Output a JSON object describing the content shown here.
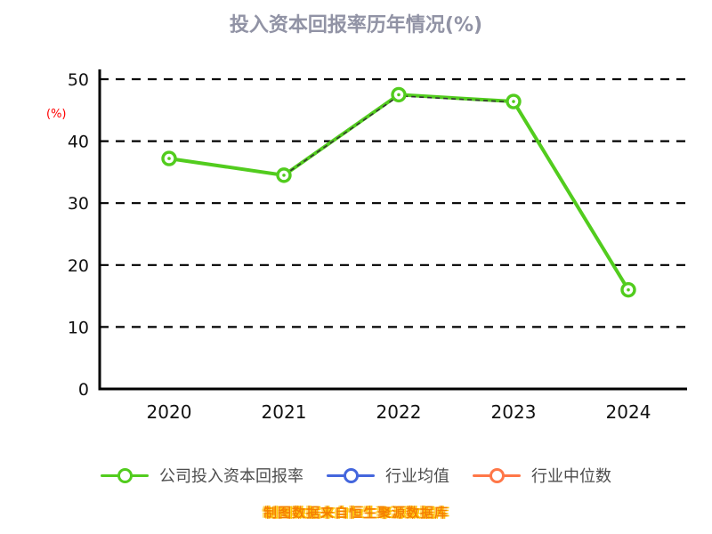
{
  "chart_data": {
    "type": "line",
    "title": "投入资本回报率历年情况(%)",
    "ylabel": "(%)",
    "ylabel_color": "#ff0000",
    "title_color": "#9193a5",
    "categories": [
      "2020",
      "2021",
      "2022",
      "2023",
      "2024"
    ],
    "series": [
      {
        "name": "公司投入资本回报率",
        "color": "#52cc1e",
        "marker": "hollow-circle-white-fill",
        "values": [
          37.2,
          34.5,
          47.5,
          46.4,
          16.0
        ]
      }
    ],
    "dashed_overlay": {
      "color": "#333333",
      "categories": [
        "2021",
        "2022",
        "2023"
      ],
      "values": [
        34.5,
        47.3,
        46.3
      ]
    },
    "yticks": [
      0,
      10,
      20,
      30,
      40,
      50
    ],
    "ylim": [
      0,
      50
    ],
    "grid": "horizontal-dashed",
    "axis_color": "#000000",
    "tick_label_color": "#111111",
    "legend_position": "bottom",
    "legend": [
      {
        "label": "公司投入资本回报率",
        "color": "#52cc1e"
      },
      {
        "label": "行业均值",
        "color": "#4466dd"
      },
      {
        "label": "行业中位数",
        "color": "#ff7748"
      }
    ],
    "footer": "制图数据来自恒生聚源数据库",
    "footer_color": "#f57f00"
  }
}
